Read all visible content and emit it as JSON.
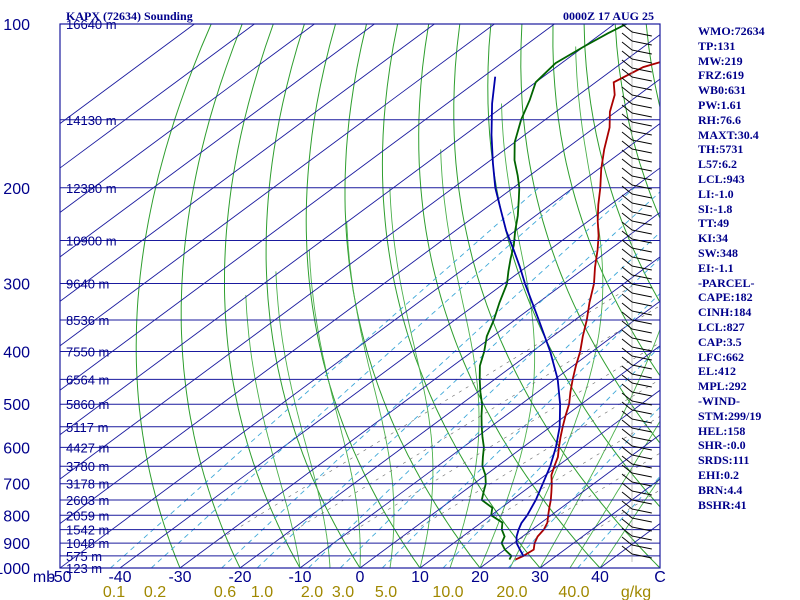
{
  "header": {
    "station": "KAPX (72634) Sounding",
    "datetime": "0000Z 17 AUG 25"
  },
  "stats": [
    "WMO:72634",
    "TP:131",
    "MW:219",
    "FRZ:619",
    "WB0:631",
    "PW:1.61",
    "RH:76.6",
    "MAXT:30.4",
    "TH:5731",
    "L57:6.2",
    "LCL:943",
    "LI:-1.0",
    "SI:-1.8",
    "TT:49",
    "KI:34",
    "SW:348",
    "EI:-1.1",
    "-PARCEL-",
    "CAPE:182",
    "CINH:184",
    "LCL:827",
    "CAP:3.5",
    "LFC:662",
    "EL:412",
    "MPL:292",
    "-WIND-",
    "STM:299/19",
    "HEL:158",
    "SHR-:0.0",
    "SRDS:111",
    "EHI:0.2",
    "BRN:4.4",
    "BSHR:41"
  ],
  "chart_data": {
    "type": "line",
    "title": "KAPX (72634) Sounding 0000Z 17 AUG 25",
    "xlabel": "C",
    "ylabel": "mb",
    "x_unit_label": "C",
    "y_unit_label": "mb",
    "mixing_ratio_unit": "g/kg",
    "xlim": [
      -50,
      50
    ],
    "ylim": [
      1000,
      100
    ],
    "y_scale": "log",
    "skew": true,
    "grid": true,
    "pressure_ticks": [
      100,
      200,
      300,
      400,
      500,
      600,
      700,
      800,
      900,
      1000
    ],
    "temperature_ticks": [
      -50,
      -40,
      -30,
      -20,
      -10,
      0,
      10,
      20,
      30,
      40
    ],
    "mixing_ratio_ticks": [
      "0.1",
      "0.2",
      "0.6",
      "1.0",
      "2.0",
      "3.0",
      "5.0",
      "10.0",
      "20.0",
      "40.0"
    ],
    "height_labels": [
      {
        "p": 100,
        "label": "16640 m"
      },
      {
        "p": 150,
        "label": "14130 m"
      },
      {
        "p": 200,
        "label": "12380 m"
      },
      {
        "p": 250,
        "label": "10900 m"
      },
      {
        "p": 300,
        "label": "9640 m"
      },
      {
        "p": 350,
        "label": "8536 m"
      },
      {
        "p": 400,
        "label": "7550 m"
      },
      {
        "p": 450,
        "label": "6564 m"
      },
      {
        "p": 500,
        "label": "5860 m"
      },
      {
        "p": 550,
        "label": "5117 m"
      },
      {
        "p": 600,
        "label": "4427 m"
      },
      {
        "p": 650,
        "label": "3780 m"
      },
      {
        "p": 700,
        "label": "3178 m"
      },
      {
        "p": 750,
        "label": "2603 m"
      },
      {
        "p": 800,
        "label": "2059 m"
      },
      {
        "p": 850,
        "label": "1542 m"
      },
      {
        "p": 900,
        "label": "1048 m"
      },
      {
        "p": 950,
        "label": "575 m"
      },
      {
        "p": 1000,
        "label": "123 m"
      }
    ],
    "series": [
      {
        "kind": "temperature",
        "color": "#aa0000",
        "points": [
          [
            965,
            24.0
          ],
          [
            950,
            24.5
          ],
          [
            925,
            24.8
          ],
          [
            900,
            23.5
          ],
          [
            875,
            22.5
          ],
          [
            850,
            22.0
          ],
          [
            825,
            21.0
          ],
          [
            800,
            19.5
          ],
          [
            775,
            18.0
          ],
          [
            750,
            16.5
          ],
          [
            725,
            14.8
          ],
          [
            700,
            13.0
          ],
          [
            675,
            11.0
          ],
          [
            650,
            9.5
          ],
          [
            625,
            8.0
          ],
          [
            600,
            6.0
          ],
          [
            575,
            4.0
          ],
          [
            550,
            2.0
          ],
          [
            525,
            0.0
          ],
          [
            500,
            -2.0
          ],
          [
            475,
            -4.5
          ],
          [
            450,
            -7.0
          ],
          [
            425,
            -9.5
          ],
          [
            400,
            -12.0
          ],
          [
            375,
            -15.0
          ],
          [
            350,
            -18.0
          ],
          [
            325,
            -21.5
          ],
          [
            300,
            -25.0
          ],
          [
            280,
            -28.5
          ],
          [
            260,
            -32.0
          ],
          [
            245,
            -35.0
          ],
          [
            230,
            -38.5
          ],
          [
            215,
            -42.0
          ],
          [
            200,
            -45.5
          ],
          [
            185,
            -49.5
          ],
          [
            170,
            -53.5
          ],
          [
            155,
            -57.5
          ],
          [
            145,
            -61.0
          ],
          [
            135,
            -64.0
          ],
          [
            128,
            -67.0
          ],
          [
            120,
            -65.5
          ],
          [
            112,
            -60.0
          ],
          [
            105,
            -55.0
          ],
          [
            100,
            -51.0
          ]
        ]
      },
      {
        "kind": "dewpoint",
        "color": "#006400",
        "points": [
          [
            965,
            23.0
          ],
          [
            950,
            22.5
          ],
          [
            925,
            20.0
          ],
          [
            900,
            18.0
          ],
          [
            875,
            17.0
          ],
          [
            850,
            15.0
          ],
          [
            825,
            13.5
          ],
          [
            800,
            10.0
          ],
          [
            775,
            8.5
          ],
          [
            750,
            5.0
          ],
          [
            725,
            3.5
          ],
          [
            700,
            2.0
          ],
          [
            675,
            0.0
          ],
          [
            650,
            -2.5
          ],
          [
            625,
            -4.5
          ],
          [
            600,
            -6.5
          ],
          [
            575,
            -9.0
          ],
          [
            550,
            -11.5
          ],
          [
            525,
            -14.0
          ],
          [
            500,
            -16.5
          ],
          [
            475,
            -19.5
          ],
          [
            450,
            -22.5
          ],
          [
            425,
            -25.5
          ],
          [
            400,
            -28.0
          ],
          [
            375,
            -31.0
          ],
          [
            350,
            -33.5
          ],
          [
            325,
            -36.5
          ],
          [
            300,
            -39.5
          ],
          [
            285,
            -42.0
          ],
          [
            270,
            -44.5
          ],
          [
            255,
            -47.0
          ],
          [
            240,
            -50.0
          ],
          [
            225,
            -53.0
          ],
          [
            210,
            -56.5
          ],
          [
            200,
            -59.0
          ],
          [
            190,
            -62.0
          ],
          [
            178,
            -66.0
          ],
          [
            165,
            -70.0
          ],
          [
            150,
            -74.0
          ],
          [
            138,
            -77.0
          ],
          [
            128,
            -80.0
          ],
          [
            118,
            -81.0
          ],
          [
            110,
            -80.0
          ],
          [
            104,
            -79.0
          ],
          [
            100,
            -78.0
          ]
        ]
      },
      {
        "kind": "parcel",
        "color": "#0000aa",
        "points": [
          [
            950,
            24.5
          ],
          [
            925,
            22.5
          ],
          [
            900,
            20.5
          ],
          [
            875,
            19.0
          ],
          [
            850,
            17.8
          ],
          [
            827,
            16.8
          ],
          [
            800,
            16.0
          ],
          [
            750,
            14.0
          ],
          [
            700,
            11.5
          ],
          [
            650,
            8.8
          ],
          [
            600,
            5.5
          ],
          [
            550,
            1.5
          ],
          [
            500,
            -3.5
          ],
          [
            450,
            -9.5
          ],
          [
            400,
            -17.0
          ],
          [
            350,
            -26.0
          ],
          [
            300,
            -36.5
          ],
          [
            280,
            -41.0
          ],
          [
            260,
            -46.0
          ],
          [
            240,
            -51.5
          ],
          [
            220,
            -57.0
          ],
          [
            200,
            -63.0
          ],
          [
            180,
            -69.0
          ],
          [
            160,
            -75.5
          ],
          [
            140,
            -82.5
          ],
          [
            125,
            -88.0
          ]
        ]
      }
    ],
    "wind_barbs_present": true
  }
}
